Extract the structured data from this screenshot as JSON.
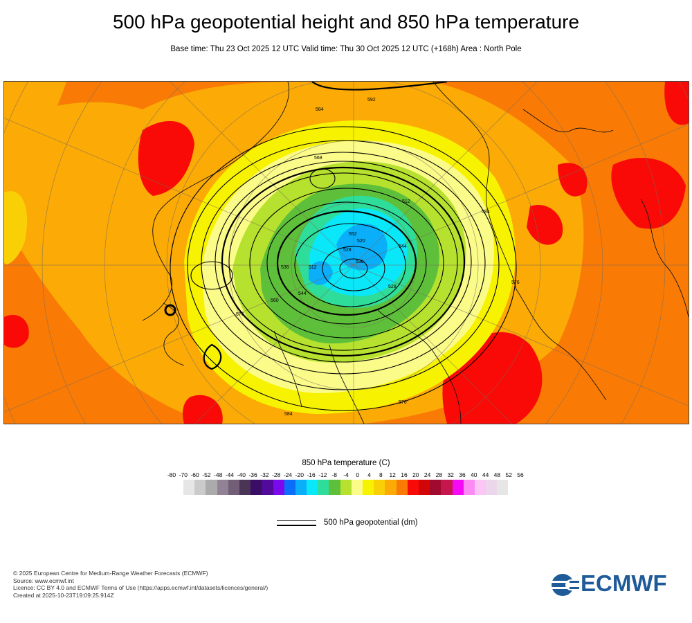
{
  "header": {
    "title": "500 hPa geopotential height and 850 hPa temperature",
    "subtitle": "Base time: Thu 23 Oct 2025 12 UTC Valid time: Thu 30 Oct 2025 12 UTC (+168h) Area : North Pole"
  },
  "map": {
    "contour_labels": [
      "584",
      "592",
      "576",
      "568",
      "552",
      "536",
      "520",
      "512",
      "544",
      "528",
      "560",
      "584",
      "576",
      "544",
      "528",
      "512",
      "536",
      "576",
      "584"
    ],
    "colors": {
      "warm_orange": "#f97b06",
      "mid_orange": "#fbaa06",
      "red": "#f90a06",
      "yellow": "#f7f300",
      "pale_yellow": "#fbfb8a",
      "lime": "#b6e12e",
      "green": "#5ec03a",
      "teal": "#2edd9a",
      "cyan": "#0ae7f9",
      "blue": "#0a9cf9"
    }
  },
  "legend": {
    "title": "850 hPa temperature (C)",
    "ticks": [
      "-80",
      "-70",
      "-60",
      "-52",
      "-48",
      "-44",
      "-40",
      "-36",
      "-32",
      "-28",
      "-24",
      "-20",
      "-16",
      "-12",
      "-8",
      "-4",
      "0",
      "4",
      "8",
      "12",
      "16",
      "20",
      "24",
      "28",
      "32",
      "36",
      "40",
      "44",
      "48",
      "52",
      "56"
    ],
    "colors": [
      "#e6e6e6",
      "#cbcbcb",
      "#ababab",
      "#928296",
      "#725e76",
      "#4a3556",
      "#3a0e66",
      "#520a9a",
      "#7a0aec",
      "#0a6ef9",
      "#0aaef9",
      "#0ae7f9",
      "#2edd9a",
      "#5ec03a",
      "#b6e12e",
      "#fbfb8a",
      "#f7f300",
      "#f9d006",
      "#fbaa06",
      "#f97b06",
      "#f90a06",
      "#d20606",
      "#a00a2e",
      "#c5164e",
      "#f50af5",
      "#fb8af5",
      "#fbc6f5",
      "#ebd6eb",
      "#e6e6e6"
    ],
    "geopotential_label": "500 hPa geopotential (dm)"
  },
  "footer": {
    "line1": "© 2025 European Centre for Medium-Range Weather Forecasts (ECMWF)",
    "line2": "Source: www.ecmwf.int",
    "line3": "Licence: CC BY 4.0 and ECMWF Terms of Use (https://apps.ecmwf.int/datasets/licences/general/)",
    "line4": "Created at 2025-10-23T19:09:25.914Z"
  },
  "logo": {
    "text": "ECMWF",
    "color": "#1f5b99"
  }
}
